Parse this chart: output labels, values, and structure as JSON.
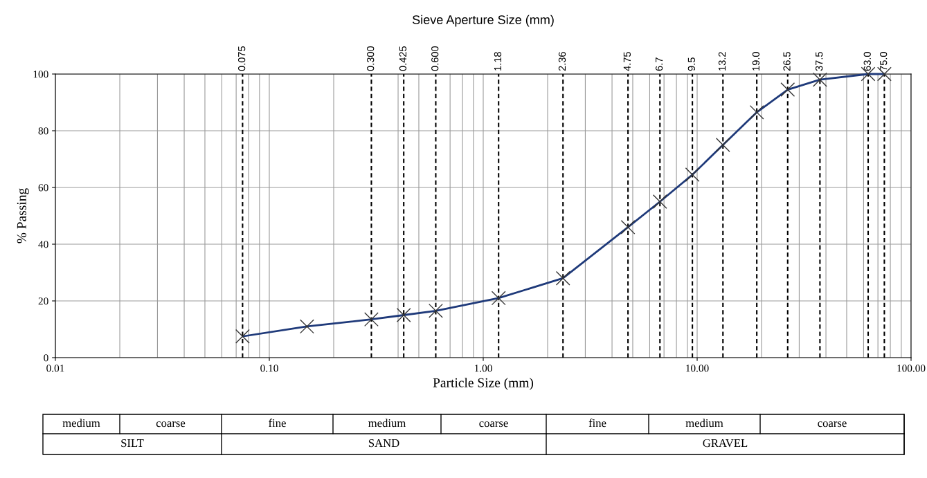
{
  "chart_data": {
    "type": "line",
    "title": "Sieve Aperture Size (mm)",
    "xlabel": "Particle Size (mm)",
    "ylabel": "% Passing",
    "log": "x",
    "grid": true,
    "marker": "cross",
    "line_style": "solid",
    "legend": false,
    "x": [
      0.075,
      0.15,
      0.3,
      0.425,
      0.6,
      1.18,
      2.36,
      4.75,
      6.7,
      9.5,
      13.2,
      19.0,
      26.5,
      37.5,
      63.0,
      75.0
    ],
    "series": [
      {
        "color": "#1f3a7a",
        "values": [
          7.5,
          11,
          13.5,
          15,
          16.5,
          21,
          28,
          46,
          55,
          64.5,
          75,
          86.5,
          94.5,
          98,
          100,
          100
        ]
      }
    ],
    "xlim": [
      0.01,
      100
    ],
    "ylim": [
      0,
      100
    ],
    "xticks": [
      {
        "value": 0.01,
        "label": "0.01"
      },
      {
        "value": 0.1,
        "label": "0.10"
      },
      {
        "value": 1,
        "label": "1.00"
      },
      {
        "value": 10,
        "label": "10.00"
      },
      {
        "value": 100,
        "label": "100.00"
      }
    ],
    "yticks": [
      0,
      20,
      40,
      60,
      80,
      100
    ],
    "ref_lines": [
      {
        "axis": "x",
        "value": 0.075,
        "label": "0.075",
        "line_style": "dashed"
      },
      {
        "axis": "x",
        "value": 0.3,
        "label": "0.300",
        "line_style": "dashed"
      },
      {
        "axis": "x",
        "value": 0.425,
        "label": "0.425",
        "line_style": "dashed"
      },
      {
        "axis": "x",
        "value": 0.6,
        "label": "0.600",
        "line_style": "dashed"
      },
      {
        "axis": "x",
        "value": 1.18,
        "label": "1.18",
        "line_style": "dashed"
      },
      {
        "axis": "x",
        "value": 2.36,
        "label": "2.36",
        "line_style": "dashed"
      },
      {
        "axis": "x",
        "value": 4.75,
        "label": "4.75",
        "line_style": "dashed"
      },
      {
        "axis": "x",
        "value": 6.7,
        "label": "6.7",
        "line_style": "dashed"
      },
      {
        "axis": "x",
        "value": 9.5,
        "label": "9.5",
        "line_style": "dashed"
      },
      {
        "axis": "x",
        "value": 13.2,
        "label": "13.2",
        "line_style": "dashed"
      },
      {
        "axis": "x",
        "value": 19.0,
        "label": "19.0",
        "line_style": "dashed"
      },
      {
        "axis": "x",
        "value": 26.5,
        "label": "26.5",
        "line_style": "dashed"
      },
      {
        "axis": "x",
        "value": 37.5,
        "label": "37.5",
        "line_style": "dashed"
      },
      {
        "axis": "x",
        "value": 63.0,
        "label": "63.0",
        "line_style": "dashed"
      },
      {
        "axis": "x",
        "value": 75.0,
        "label": "75.0",
        "line_style": "dashed"
      }
    ],
    "annotations": [
      "medium",
      "coarse",
      "fine",
      "medium",
      "coarse",
      "fine",
      "medium",
      "coarse",
      "SILT",
      "SAND",
      "GRAVEL"
    ]
  }
}
